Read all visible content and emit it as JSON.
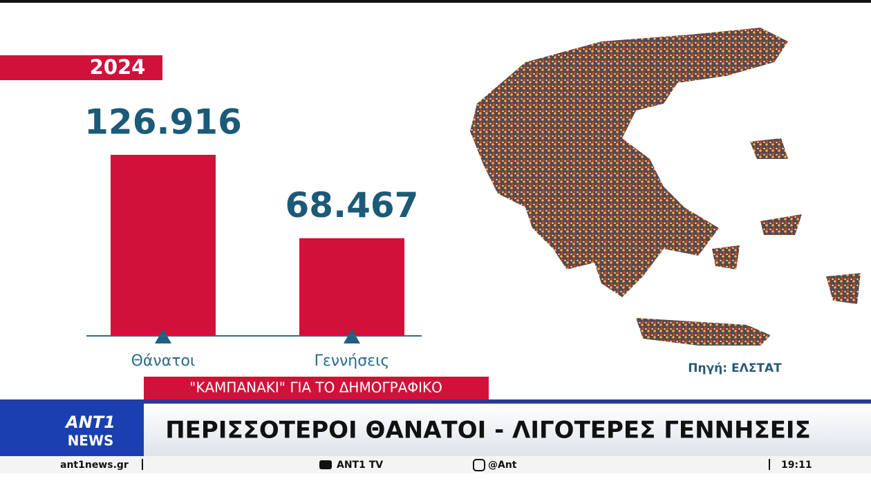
{
  "chart_data": {
    "type": "bar",
    "title": "2024",
    "categories": [
      "Θάνατοι",
      "Γεννήσεις"
    ],
    "values": [
      126916,
      68467
    ],
    "value_labels": [
      "126.916",
      "68.467"
    ],
    "color": "#d0123a",
    "source": "Πηγή: ΕΛΣΤΑΤ"
  },
  "banner": "\"ΚΑΜΠΑΝΑΚΙ\" ΓΙΑ ΤΟ ΔΗΜΟΓΡΑΦΙΚΟ",
  "headline": "ΠΕΡΙΣΣΟΤΕΡΟΙ ΘΑΝΑΤΟΙ - ΛΙΓΟΤΕΡΕΣ ΓΕΝΝΗΣΕΙΣ",
  "logo": {
    "top": "ANT1",
    "bottom": "NEWS"
  },
  "footer": {
    "site": "ant1news.gr",
    "youtube": "ANT1 TV",
    "instagram": "@Ant",
    "time": "19:11"
  }
}
